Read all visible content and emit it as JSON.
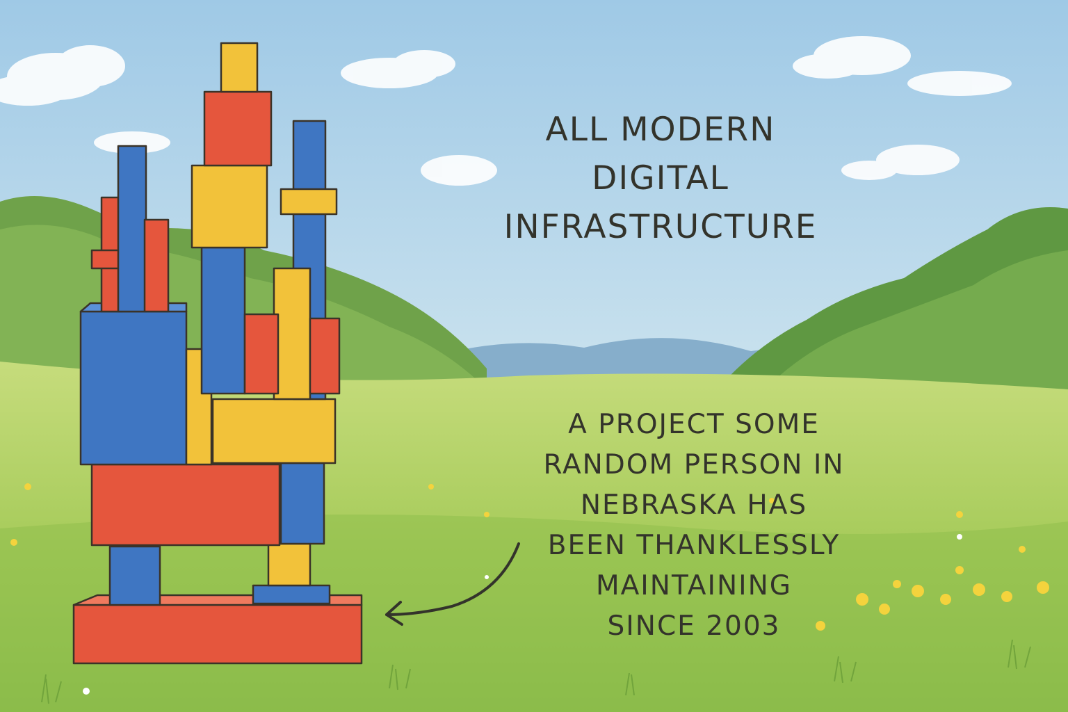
{
  "headline": {
    "lines": [
      "All modern",
      "digital",
      "infrastructure"
    ]
  },
  "annotation": {
    "lines": [
      "A project some",
      "random person in",
      "Nebraska has",
      "been thanklessly",
      "maintaining",
      "since 2003"
    ]
  },
  "palette": {
    "sky_top": "#a9cfe8",
    "sky_bottom": "#dcecf2",
    "grass_light": "#b7d46a",
    "grass_dark": "#7fb04a",
    "hills": "#7aa9c4",
    "trees": "#5f9a45",
    "block_red": "#e5563d",
    "block_blue": "#3f76c2",
    "block_yellow": "#f2c23a",
    "ink": "#33332b"
  },
  "icons": {
    "pointer": "curved-arrow-icon",
    "flowers": "wildflower-icon"
  }
}
